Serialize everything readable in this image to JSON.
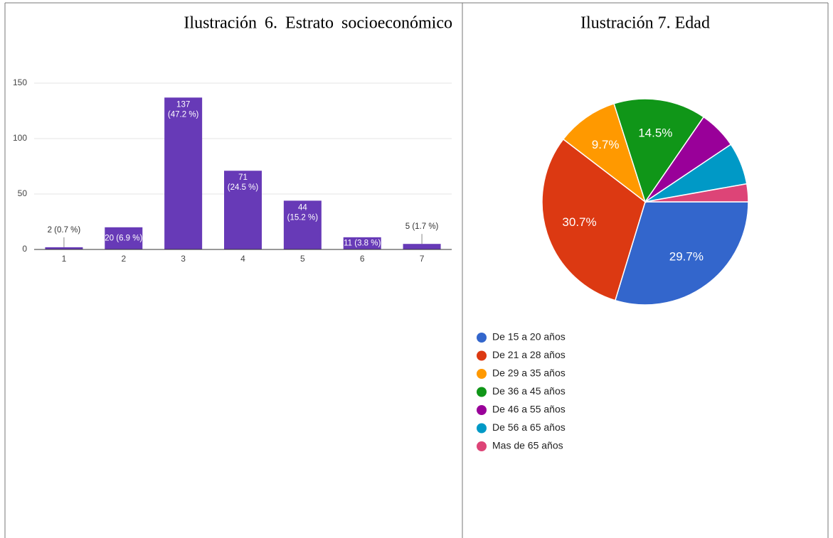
{
  "chart_data": [
    {
      "type": "bar",
      "title": "Ilustración 6. Estrato socioeconómico",
      "categories": [
        "1",
        "2",
        "3",
        "4",
        "5",
        "6",
        "7"
      ],
      "values": [
        2,
        20,
        137,
        71,
        44,
        11,
        5
      ],
      "value_labels": [
        "2 (0.7 %)",
        "20 (6.9 %)",
        "137 (47.2 %)",
        "71 (24.5 %)",
        "44 (15.2 %)",
        "11 (3.8 %)",
        "5 (1.7 %)"
      ],
      "color": "#673ab7",
      "ylim": [
        0,
        150
      ],
      "yticks": [
        0,
        50,
        100,
        150
      ],
      "grid": true
    },
    {
      "type": "pie",
      "title": "Ilustración 7. Edad",
      "categories": [
        "De 15 a 20 años",
        "De 21 a 28 años",
        "De 29 a 35 años",
        "De 36 a 45 años",
        "De 46 a 55 años",
        "De 56 a 65 años",
        "Mas de 65 años"
      ],
      "values": [
        29.7,
        30.7,
        9.7,
        14.5,
        6.0,
        6.6,
        2.8
      ],
      "value_labels": [
        "29.7%",
        "30.7%",
        "9.7%",
        "14.5%",
        null,
        null,
        null
      ],
      "colors": [
        "#3366cc",
        "#dc3912",
        "#ff9900",
        "#109618",
        "#990099",
        "#0099c6",
        "#dd4477"
      ],
      "legend": "bottom"
    }
  ]
}
